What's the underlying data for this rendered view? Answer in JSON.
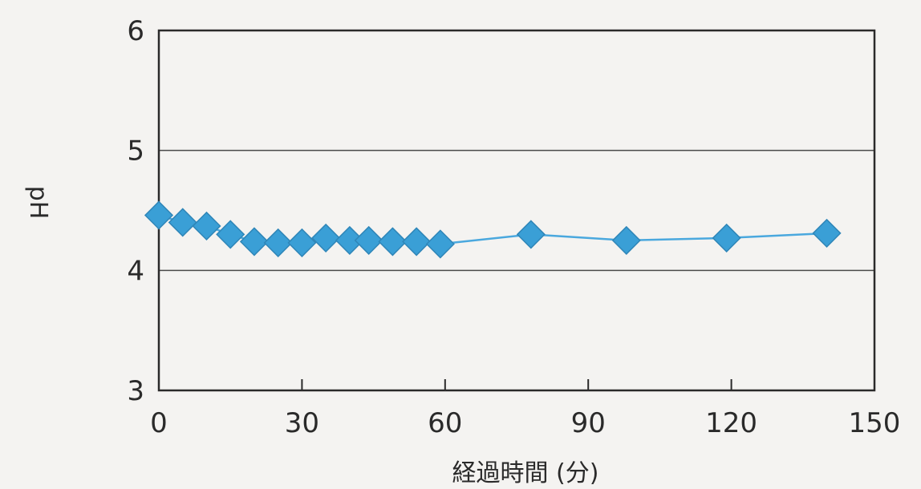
{
  "chart_data": {
    "type": "scatter",
    "title": "",
    "xlabel": "経過時間 (分)",
    "ylabel": "pH",
    "xlim": [
      0,
      150
    ],
    "ylim": [
      3,
      6
    ],
    "xticks": [
      0,
      30,
      60,
      90,
      120,
      150
    ],
    "yticks": [
      3,
      4,
      5,
      6
    ],
    "grid": "horizontal",
    "marker_color": "#3a9fd6",
    "line_color": "#4aa8de",
    "series": [
      {
        "marker": "diamond",
        "x": [
          0,
          5,
          10,
          15,
          20,
          25,
          30,
          35,
          40,
          44,
          49,
          54,
          59,
          78,
          98,
          119,
          140
        ],
        "y": [
          4.46,
          4.4,
          4.37,
          4.3,
          4.24,
          4.23,
          4.23,
          4.27,
          4.25,
          4.25,
          4.24,
          4.24,
          4.22,
          4.3,
          4.25,
          4.27,
          4.31
        ]
      }
    ]
  }
}
